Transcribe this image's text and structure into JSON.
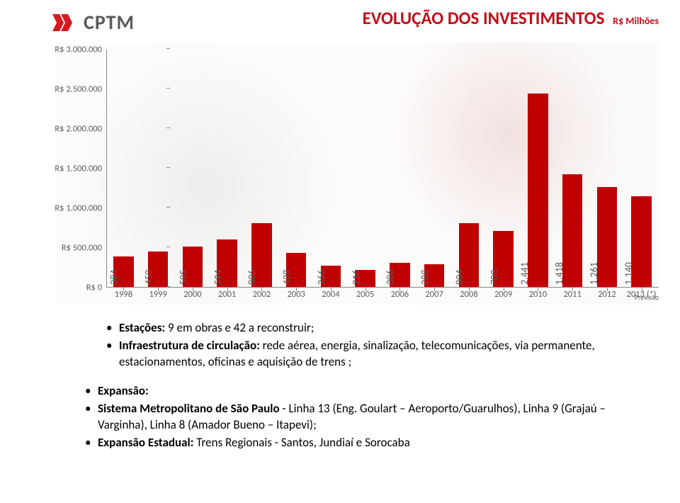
{
  "brand": {
    "name": "CPTM",
    "logo_red": "#d71920",
    "text_color": "#5a5a5a"
  },
  "title": {
    "main": "EVOLUÇÃO DOS INVESTIMENTOS",
    "sub": "R$ Milhões",
    "color": "#c30e1a",
    "fontsize_main": 25,
    "fontsize_sub": 14
  },
  "chart": {
    "type": "bar",
    "bar_color": "#c00000",
    "axis_color": "#878787",
    "label_color": "#595959",
    "label_fontsize": 12.5,
    "bar_value_fontsize": 14,
    "ylim": [
      0,
      3000000
    ],
    "ytick_step": 500000,
    "yticks": [
      {
        "v": 0,
        "label": "R$ 0"
      },
      {
        "v": 500000,
        "label": "R$ 500.000"
      },
      {
        "v": 1000000,
        "label": "R$ 1.000.000"
      },
      {
        "v": 1500000,
        "label": "R$ 1.500.000"
      },
      {
        "v": 2000000,
        "label": "R$ 2.000.000"
      },
      {
        "v": 2500000,
        "label": "R$ 2.500.000"
      },
      {
        "v": 3000000,
        "label": "R$ 3.000.000"
      }
    ],
    "bars": [
      {
        "x": "1998",
        "value": 384000,
        "label": "384"
      },
      {
        "x": "1999",
        "value": 450000,
        "label": "450"
      },
      {
        "x": "2000",
        "value": 505000,
        "label": "505"
      },
      {
        "x": "2001",
        "value": 594000,
        "label": "594"
      },
      {
        "x": "2002",
        "value": 806000,
        "label": "806"
      },
      {
        "x": "2003",
        "value": 428000,
        "label": "428"
      },
      {
        "x": "2004",
        "value": 266000,
        "label": "266"
      },
      {
        "x": "2005",
        "value": 216000,
        "label": "216"
      },
      {
        "x": "2006",
        "value": 306000,
        "label": "306"
      },
      {
        "x": "2007",
        "value": 288000,
        "label": "288"
      },
      {
        "x": "2008",
        "value": 804000,
        "label": "804"
      },
      {
        "x": "2009",
        "value": 703000,
        "label": "703"
      },
      {
        "x": "2010",
        "value": 2441000,
        "label": "2.441"
      },
      {
        "x": "2011",
        "value": 1418000,
        "label": "1.418"
      },
      {
        "x": "2012",
        "value": 1261000,
        "label": "1.261"
      },
      {
        "x": "2013 (*)",
        "value": 1140000,
        "label": "1.140"
      }
    ],
    "footnote": "Previsão"
  },
  "bullets": {
    "group1": [
      {
        "bold": "Estações:",
        "rest": " 9 em obras e 42 a reconstruir;"
      },
      {
        "bold": "Infraestrutura de circulação:",
        "rest": " rede aérea, energia, sinalização, telecomunicações, via permanente, estacionamentos, oficinas e aquisição de trens ;"
      }
    ],
    "group2": [
      {
        "bold": "Expansão:",
        "rest": ""
      },
      {
        "bold": "Sistema Metropolitano de São Paulo",
        "rest": " - Linha 13 (Eng. Goulart – Aeroporto/Guarulhos), Linha 9 (Grajaú – Varginha), Linha 8 (Amador Bueno – Itapevi);"
      },
      {
        "bold": "Expansão Estadual:",
        "rest": " Trens Regionais - Santos, Jundiaí e Sorocaba"
      }
    ]
  }
}
